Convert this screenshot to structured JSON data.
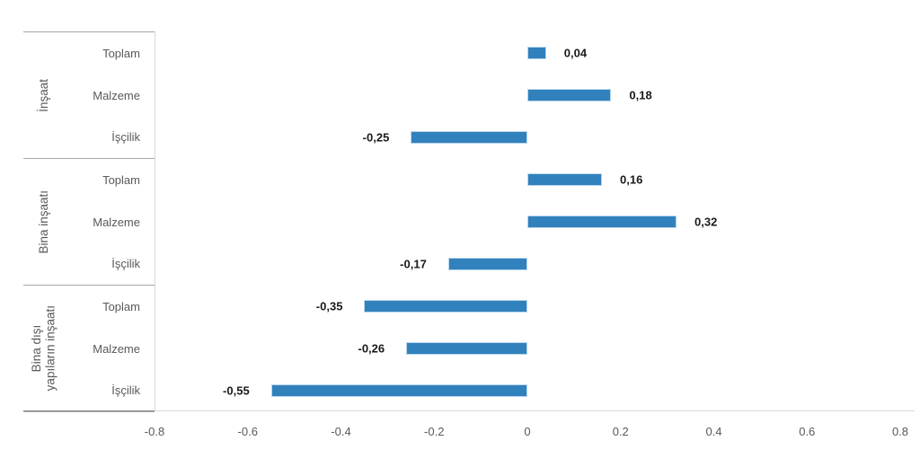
{
  "chart_data": {
    "type": "bar",
    "orientation": "horizontal",
    "title": "",
    "xlabel": "",
    "ylabel": "",
    "xlim": [
      -0.8,
      0.8
    ],
    "x_tick_values": [
      -0.8,
      -0.6,
      -0.4,
      -0.2,
      0,
      0.2,
      0.4,
      0.6,
      0.8
    ],
    "x_tick_labels": [
      "-0.8",
      "-0.6",
      "-0.4",
      "-0.2",
      "0",
      "0.2",
      "0.4",
      "0.6",
      "0.8"
    ],
    "grid": false,
    "legend": null,
    "bar_color": "#3181bd",
    "bar_border_color": "#b9d5ec",
    "groups": [
      {
        "label_lines": [
          "İnşaat"
        ],
        "items": [
          {
            "category": "Toplam",
            "value": 0.04,
            "value_label": "0,04"
          },
          {
            "category": "Malzeme",
            "value": 0.18,
            "value_label": "0,18"
          },
          {
            "category": "İşçilik",
            "value": -0.25,
            "value_label": "-0,25"
          }
        ]
      },
      {
        "label_lines": [
          "Bina inşaatı"
        ],
        "items": [
          {
            "category": "Toplam",
            "value": 0.16,
            "value_label": "0,16"
          },
          {
            "category": "Malzeme",
            "value": 0.32,
            "value_label": "0,32"
          },
          {
            "category": "İşçilik",
            "value": -0.17,
            "value_label": "-0,17"
          }
        ]
      },
      {
        "label_lines": [
          "Bina dışı",
          "yapıların inşaatı"
        ],
        "items": [
          {
            "category": "Toplam",
            "value": -0.35,
            "value_label": "-0,35"
          },
          {
            "category": "Malzeme",
            "value": -0.26,
            "value_label": "-0,26"
          },
          {
            "category": "İşçilik",
            "value": -0.55,
            "value_label": "-0,55"
          }
        ]
      }
    ]
  },
  "colors": {
    "bar_fill": "#3181bd",
    "bar_border": "#b9d5ec",
    "category_axis_line": "#d9d9d9",
    "group_separator_line": "#a6a6a6",
    "bottom_axis_line": "#d9d9d9",
    "category_text": "#595959",
    "tick_text": "#595959",
    "value_text": "#1a1a1a"
  }
}
